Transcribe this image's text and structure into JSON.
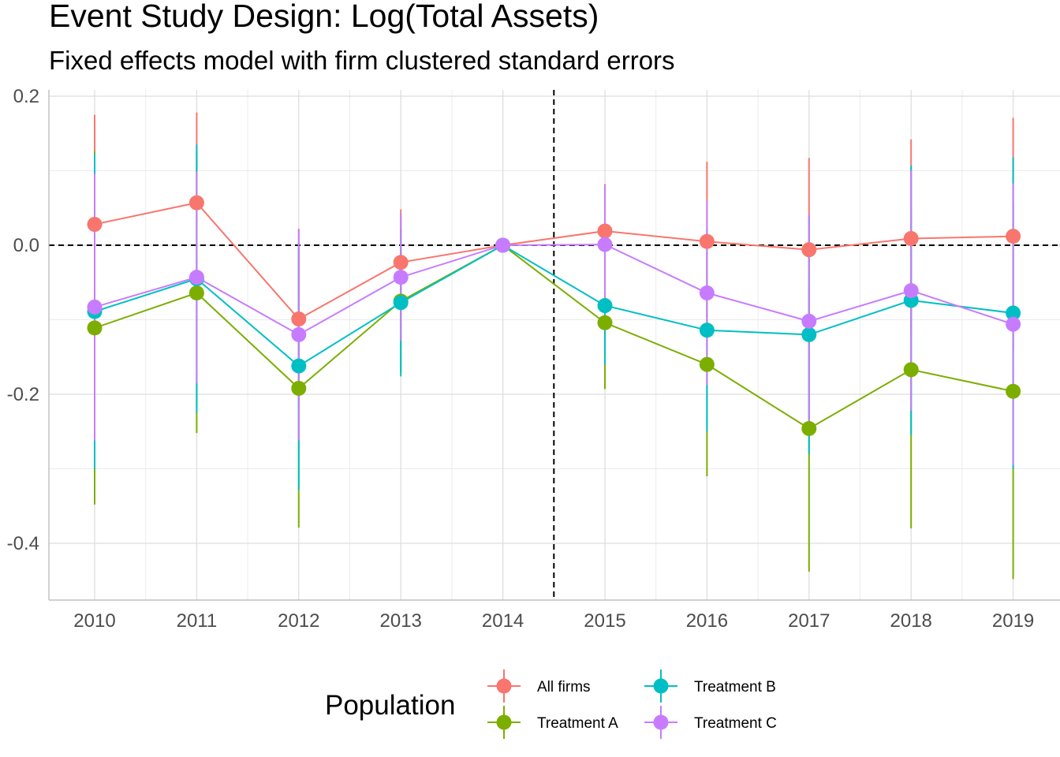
{
  "chart_data": {
    "type": "line",
    "title": "Event Study Design: Log(Total Assets)",
    "subtitle": "Fixed effects model with firm clustered standard errors",
    "xlabel": "",
    "ylabel": "",
    "categories": [
      "2010",
      "2011",
      "2012",
      "2013",
      "2014",
      "2015",
      "2016",
      "2017",
      "2018",
      "2019"
    ],
    "ylim": [
      -0.475,
      0.21
    ],
    "yticks": [
      0.2,
      0.0,
      -0.2,
      -0.4
    ],
    "ytick_labels": [
      "0.2",
      "0.0",
      "-0.2",
      "-0.4"
    ],
    "hline": 0.0,
    "vline_between": [
      "2014",
      "2015"
    ],
    "grid": true,
    "legend": {
      "title": "Population",
      "placement": "bottom"
    },
    "series": [
      {
        "name": "All firms",
        "color": "#F8766D",
        "values": [
          0.028,
          0.057,
          -0.099,
          -0.023,
          0.0,
          0.019,
          0.005,
          -0.006,
          0.009,
          0.012
        ],
        "lower": [
          -0.12,
          -0.065,
          -0.22,
          -0.095,
          0.0,
          -0.045,
          -0.1,
          -0.13,
          -0.12,
          -0.14
        ],
        "upper": [
          0.175,
          0.178,
          0.022,
          0.048,
          0.0,
          0.082,
          0.112,
          0.117,
          0.142,
          0.171
        ]
      },
      {
        "name": "Treatment A",
        "color": "#7CAE00",
        "values": [
          -0.111,
          -0.064,
          -0.192,
          -0.075,
          0.0,
          -0.104,
          -0.16,
          -0.246,
          -0.167,
          -0.196
        ],
        "lower": [
          -0.348,
          -0.252,
          -0.379,
          -0.17,
          0.0,
          -0.193,
          -0.31,
          -0.438,
          -0.38,
          -0.448
        ],
        "upper": [
          0.126,
          0.124,
          -0.005,
          0.02,
          0.0,
          -0.015,
          -0.01,
          -0.054,
          0.046,
          0.056
        ]
      },
      {
        "name": "Treatment B",
        "color": "#00BFC4",
        "values": [
          -0.089,
          -0.045,
          -0.162,
          -0.077,
          0.0,
          -0.081,
          -0.114,
          -0.12,
          -0.074,
          -0.091
        ],
        "lower": [
          -0.3,
          -0.225,
          -0.328,
          -0.176,
          0.0,
          -0.16,
          -0.25,
          -0.28,
          -0.255,
          -0.3
        ],
        "upper": [
          0.122,
          0.135,
          0.004,
          0.022,
          0.0,
          -0.002,
          0.022,
          0.04,
          0.107,
          0.118
        ]
      },
      {
        "name": "Treatment C",
        "color": "#C77CFF",
        "values": [
          -0.083,
          -0.043,
          -0.12,
          -0.043,
          0.0,
          0.001,
          -0.064,
          -0.102,
          -0.061,
          -0.106
        ],
        "lower": [
          -0.262,
          -0.185,
          -0.262,
          -0.128,
          0.0,
          -0.078,
          -0.188,
          -0.245,
          -0.222,
          -0.295
        ],
        "upper": [
          0.096,
          0.099,
          0.022,
          0.042,
          0.0,
          0.08,
          0.06,
          0.041,
          0.1,
          0.083
        ]
      }
    ]
  }
}
